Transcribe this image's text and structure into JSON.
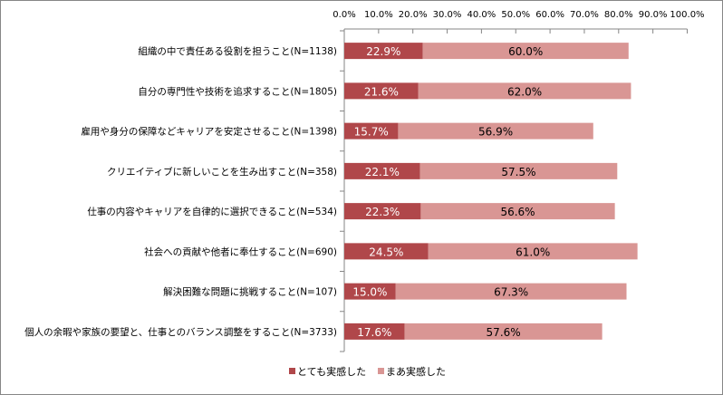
{
  "chart_data": {
    "type": "bar",
    "orientation": "horizontal",
    "stacked": true,
    "categories": [
      "組織の中で責任ある役割を担うこと(N=1138)",
      "自分の専門性や技術を追求すること(N=1805)",
      "雇用や身分の保障などキャリアを安定させること(N=1398)",
      "クリエイティブに新しいことを生み出すこと(N=358)",
      "仕事の内容やキャリアを自律的に選択できること(N=534)",
      "社会への貢献や他者に奉仕すること(N=690)",
      "解決困難な問題に挑戦すること(N=107)",
      "個人の余暇や家族の要望と、仕事とのバランス調整をすること(N=3733)"
    ],
    "series": [
      {
        "name": "とても実感した",
        "color": "#b0474a",
        "label_color": "#ffffff",
        "values": [
          22.9,
          21.6,
          15.7,
          22.1,
          22.3,
          24.5,
          15.0,
          17.6
        ]
      },
      {
        "name": "まあ実感した",
        "color": "#d99694",
        "label_color": "#000000",
        "values": [
          60.0,
          62.0,
          56.9,
          57.5,
          56.6,
          61.0,
          67.3,
          57.6
        ]
      }
    ],
    "xlim": [
      0,
      100
    ],
    "xticks": [
      "0.0%",
      "10.0%",
      "20.0%",
      "30.0%",
      "40.0%",
      "50.0%",
      "60.0%",
      "70.0%",
      "80.0%",
      "90.0%",
      "100.0%"
    ],
    "x_axis_position": "top",
    "grid": false,
    "legend": "bottom"
  }
}
